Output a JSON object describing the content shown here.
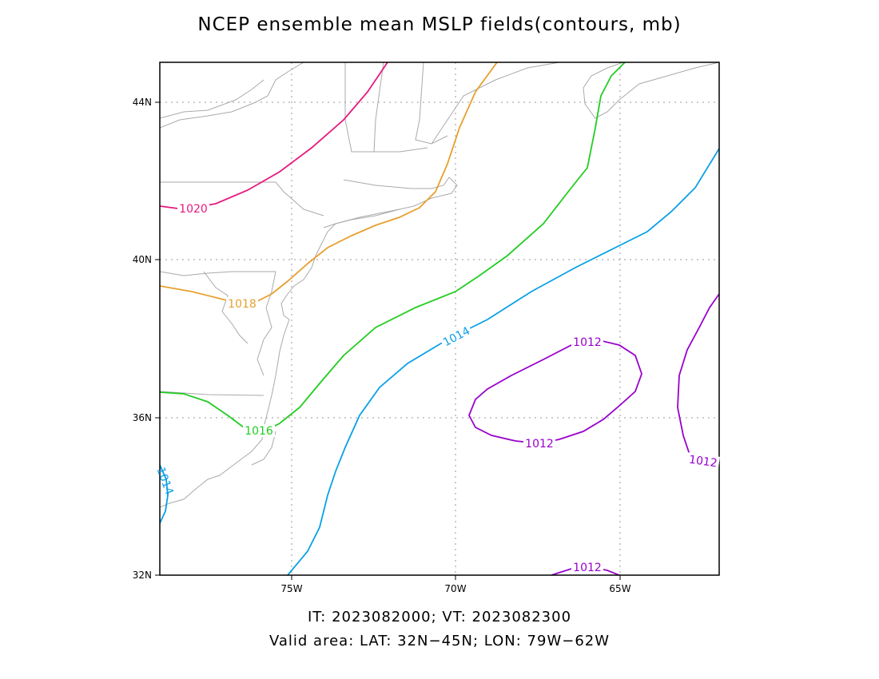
{
  "title": "NCEP ensemble mean MSLP fields(contours, mb)",
  "footer": {
    "it_vt": "IT: 2023082000; VT: 2023082300",
    "valid_area": "Valid area: LAT: 32N−45N; LON: 79W−62W"
  },
  "map": {
    "lat_range": [
      32,
      45
    ],
    "lon_range": [
      -79,
      -62
    ],
    "lat_ticks": [
      {
        "label": "44N",
        "value": 44
      },
      {
        "label": "40N",
        "value": 40
      },
      {
        "label": "36N",
        "value": 36
      },
      {
        "label": "32N",
        "value": 32
      }
    ],
    "lon_ticks": [
      {
        "label": "75W",
        "value": -75
      },
      {
        "label": "70W",
        "value": -70
      },
      {
        "label": "65W",
        "value": -65
      }
    ],
    "grid": "dotted",
    "contour_colors": {
      "1012": "#9900cc",
      "1014": "#0aa0e6",
      "1016": "#22cc22",
      "1018": "#e6a030",
      "1020": "#e6187d"
    },
    "contour_labels": [
      "1020",
      "1018",
      "1016",
      "1014",
      "1014",
      "1012",
      "1012",
      "1012",
      "1012"
    ]
  }
}
